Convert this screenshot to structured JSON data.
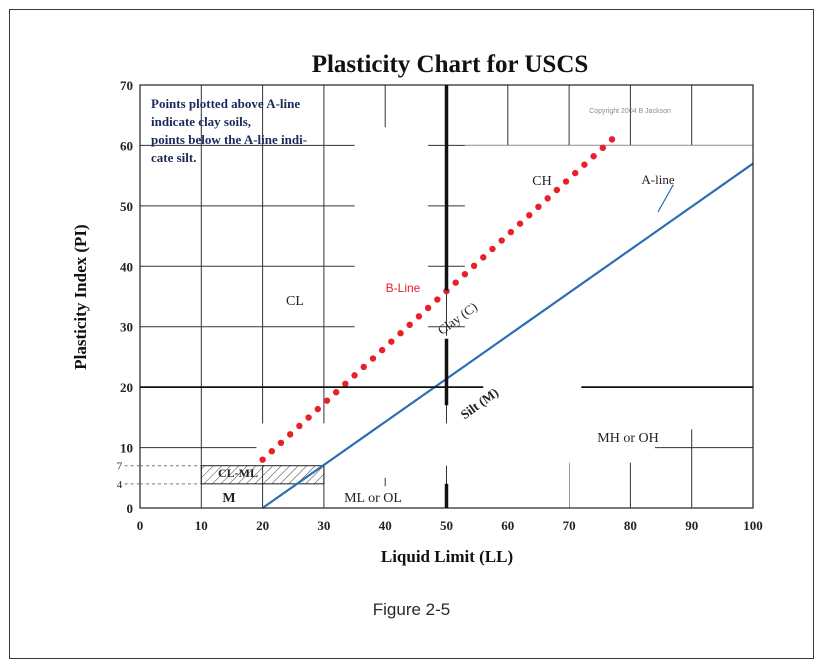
{
  "chart_data": {
    "type": "line",
    "title": "Plasticity Chart for USCS",
    "xlabel": "Liquid Limit (LL)",
    "ylabel": "Plasticity Index (PI)",
    "xlim": [
      0,
      100
    ],
    "ylim": [
      0,
      70
    ],
    "x_ticks": [
      "0",
      "10",
      "20",
      "30",
      "40",
      "50",
      "60",
      "70",
      "80",
      "90",
      "100"
    ],
    "y_ticks": [
      "0",
      "10",
      "20",
      "30",
      "40",
      "50",
      "60",
      "70"
    ],
    "extra_y_ticks": [
      "4",
      "7"
    ],
    "grid": true,
    "note_lines": [
      "Points plotted above A-line",
      "indicate clay soils,",
      "points below the A-line indi-",
      "cate silt."
    ],
    "copyright": "Copyright 2004 B Jackson",
    "series": [
      {
        "name": "A-line",
        "x": [
          20,
          100
        ],
        "y": [
          0,
          57
        ],
        "color": "#2e6db4"
      },
      {
        "name": "B-Line",
        "x": [
          20,
          77
        ],
        "y": [
          8,
          61
        ],
        "color": "#e8202a"
      }
    ],
    "region_labels": {
      "ch": "CH",
      "cl": "CL",
      "clay": "Clay (C)",
      "silt": "Silt (M)",
      "mh_oh": "MH or OH",
      "ml_ol": "ML or OL",
      "cl_ml": "CL-ML",
      "m": "M"
    }
  },
  "caption": "Figure 2-5"
}
